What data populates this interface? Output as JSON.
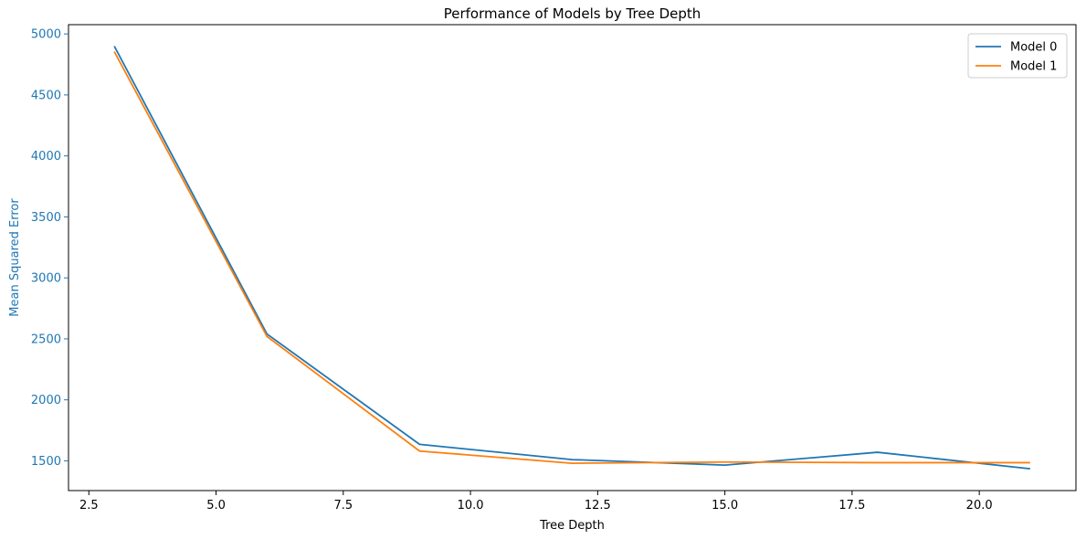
{
  "chart_data": {
    "type": "line",
    "title": "Performance of Models by Tree Depth",
    "xlabel": "Tree Depth",
    "ylabel": "Mean Squared Error",
    "xlim": [
      2.1,
      21.9
    ],
    "ylim": [
      1256,
      5076
    ],
    "xticks": [
      2.5,
      5.0,
      7.5,
      10.0,
      12.5,
      15.0,
      17.5,
      20.0
    ],
    "xtick_labels": [
      "2.5",
      "5.0",
      "7.5",
      "10.0",
      "12.5",
      "15.0",
      "17.5",
      "20.0"
    ],
    "yticks": [
      1500,
      2000,
      2500,
      3000,
      3500,
      4000,
      4500,
      5000
    ],
    "ytick_labels": [
      "1500",
      "2000",
      "2500",
      "3000",
      "3500",
      "4000",
      "4500",
      "5000"
    ],
    "x": [
      3,
      6,
      9,
      12,
      15,
      18,
      21
    ],
    "series": [
      {
        "name": "Model 0",
        "color": "#1f77b4",
        "values": [
          4900,
          2540,
          1635,
          1510,
          1465,
          1570,
          1435
        ]
      },
      {
        "name": "Model 1",
        "color": "#ff7f0e",
        "values": [
          4855,
          2520,
          1580,
          1480,
          1490,
          1485,
          1485
        ]
      }
    ],
    "ylabel_color": "#1f77b4",
    "ytick_color": "#1f77b4",
    "grid": false,
    "legend_position": "top-right"
  }
}
